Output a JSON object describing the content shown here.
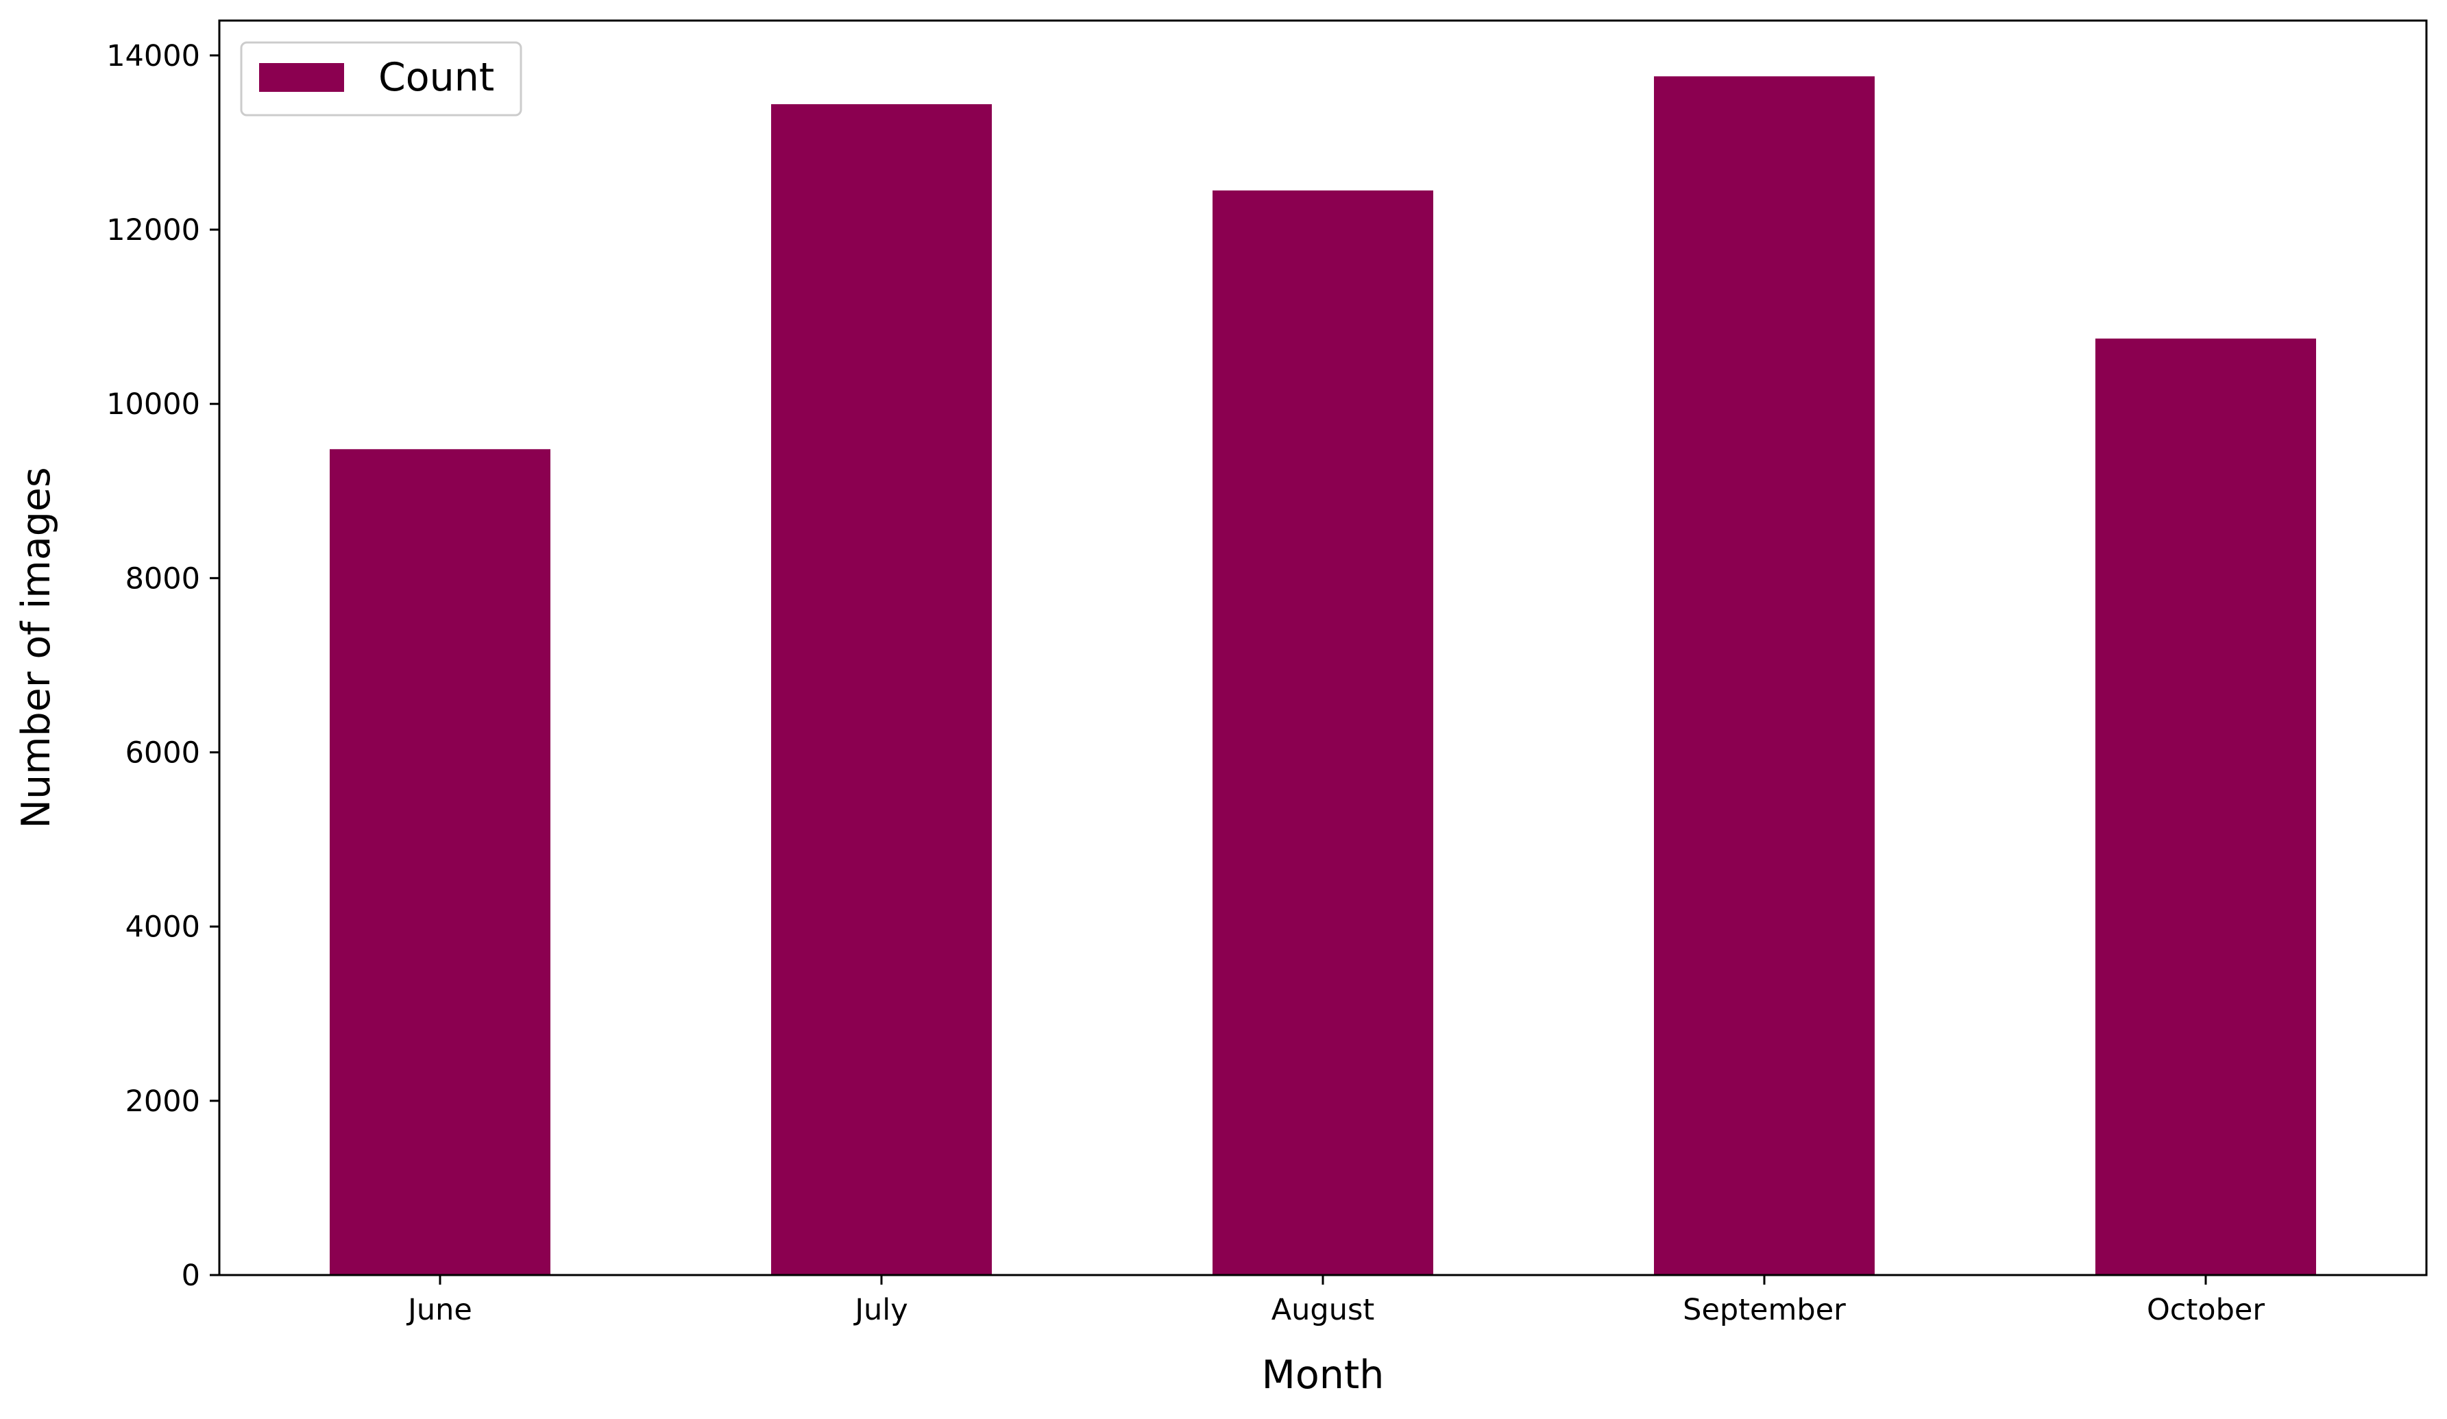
{
  "chart_data": {
    "type": "bar",
    "title": "",
    "xlabel": "Month",
    "ylabel": "Number of images",
    "categories": [
      "June",
      "July",
      "August",
      "September",
      "October"
    ],
    "series": [
      {
        "name": "Count",
        "values": [
          9480,
          13440,
          12450,
          13760,
          10750
        ]
      }
    ],
    "ylim": [
      0,
      14400
    ],
    "yticks": [
      0,
      2000,
      4000,
      6000,
      8000,
      10000,
      12000,
      14000
    ],
    "legend_position": "upper-left",
    "grid": false,
    "bar_color": "#8b0050"
  }
}
